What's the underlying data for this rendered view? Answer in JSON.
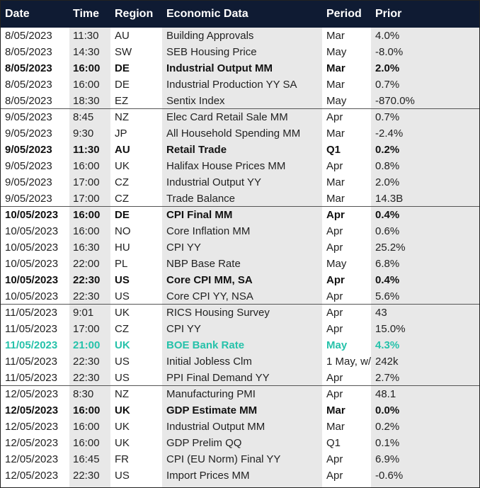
{
  "header": [
    "Date",
    "Time",
    "Region",
    "Economic Data",
    "Period",
    "Prior"
  ],
  "groups": [
    {
      "rows": [
        {
          "cells": [
            "8/05/2023",
            "11:30",
            "AU",
            "Building Approvals",
            "Mar",
            "4.0%"
          ]
        },
        {
          "cells": [
            "8/05/2023",
            "14:30",
            "SW",
            "SEB Housing Price",
            "May",
            "-8.0%"
          ]
        },
        {
          "cells": [
            "8/05/2023",
            "16:00",
            "DE",
            "Industrial Output MM",
            "Mar",
            "2.0%"
          ],
          "style": "bold"
        },
        {
          "cells": [
            "8/05/2023",
            "16:00",
            "DE",
            "Industrial Production YY SA",
            "Mar",
            "0.7%"
          ]
        },
        {
          "cells": [
            "8/05/2023",
            "18:30",
            "EZ",
            "Sentix Index",
            "May",
            "-870.0%"
          ]
        }
      ]
    },
    {
      "rows": [
        {
          "cells": [
            "9/05/2023",
            "8:45",
            "NZ",
            "Elec Card Retail Sale MM",
            "Apr",
            "0.7%"
          ]
        },
        {
          "cells": [
            "9/05/2023",
            "9:30",
            "JP",
            "All Household Spending MM",
            "Mar",
            "-2.4%"
          ]
        },
        {
          "cells": [
            "9/05/2023",
            "11:30",
            "AU",
            "Retail Trade",
            "Q1",
            "0.2%"
          ],
          "style": "bold"
        },
        {
          "cells": [
            "9/05/2023",
            "16:00",
            "UK",
            "Halifax House Prices MM",
            "Apr",
            "0.8%"
          ]
        },
        {
          "cells": [
            "9/05/2023",
            "17:00",
            "CZ",
            "Industrial Output YY",
            "Mar",
            "2.0%"
          ]
        },
        {
          "cells": [
            "9/05/2023",
            "17:00",
            "CZ",
            "Trade Balance",
            "Mar",
            "14.3B"
          ]
        }
      ]
    },
    {
      "rows": [
        {
          "cells": [
            "10/05/2023",
            "16:00",
            "DE",
            "CPI Final MM",
            "Apr",
            "0.4%"
          ],
          "style": "bold"
        },
        {
          "cells": [
            "10/05/2023",
            "16:00",
            "NO",
            "Core Inflation MM",
            "Apr",
            "0.6%"
          ]
        },
        {
          "cells": [
            "10/05/2023",
            "16:30",
            "HU",
            "CPI YY",
            "Apr",
            "25.2%"
          ]
        },
        {
          "cells": [
            "10/05/2023",
            "22:00",
            "PL",
            "NBP Base Rate",
            "May",
            "6.8%"
          ]
        },
        {
          "cells": [
            "10/05/2023",
            "22:30",
            "US",
            "Core CPI MM, SA",
            "Apr",
            "0.4%"
          ],
          "style": "bold"
        },
        {
          "cells": [
            "10/05/2023",
            "22:30",
            "US",
            "Core CPI YY, NSA",
            "Apr",
            "5.6%"
          ]
        }
      ]
    },
    {
      "rows": [
        {
          "cells": [
            "11/05/2023",
            "9:01",
            "UK",
            "RICS Housing Survey",
            "Apr",
            "43"
          ]
        },
        {
          "cells": [
            "11/05/2023",
            "17:00",
            "CZ",
            "CPI YY",
            "Apr",
            "15.0%"
          ]
        },
        {
          "cells": [
            "11/05/2023",
            "21:00",
            "UK",
            "BOE Bank Rate",
            "May",
            "4.3%"
          ],
          "style": "highlight"
        },
        {
          "cells": [
            "11/05/2023",
            "22:30",
            "US",
            "Initial Jobless Clm",
            "1 May, w/",
            "242k"
          ]
        },
        {
          "cells": [
            "11/05/2023",
            "22:30",
            "US",
            "PPI Final Demand YY",
            "Apr",
            "2.7%"
          ]
        }
      ]
    },
    {
      "rows": [
        {
          "cells": [
            "12/05/2023",
            "8:30",
            "NZ",
            "Manufacturing PMI",
            "Apr",
            "48.1"
          ]
        },
        {
          "cells": [
            "12/05/2023",
            "16:00",
            "UK",
            "GDP Estimate MM",
            "Mar",
            "0.0%"
          ],
          "style": "bold"
        },
        {
          "cells": [
            "12/05/2023",
            "16:00",
            "UK",
            "Industrial Output MM",
            "Mar",
            "0.2%"
          ]
        },
        {
          "cells": [
            "12/05/2023",
            "16:00",
            "UK",
            "GDP Prelim QQ",
            "Q1",
            "0.1%"
          ]
        },
        {
          "cells": [
            "12/05/2023",
            "16:45",
            "FR",
            "CPI (EU Norm) Final YY",
            "Apr",
            "6.9%"
          ]
        },
        {
          "cells": [
            "12/05/2023",
            "22:30",
            "US",
            "Import Prices MM",
            "Apr",
            "-0.6%"
          ]
        }
      ]
    }
  ]
}
